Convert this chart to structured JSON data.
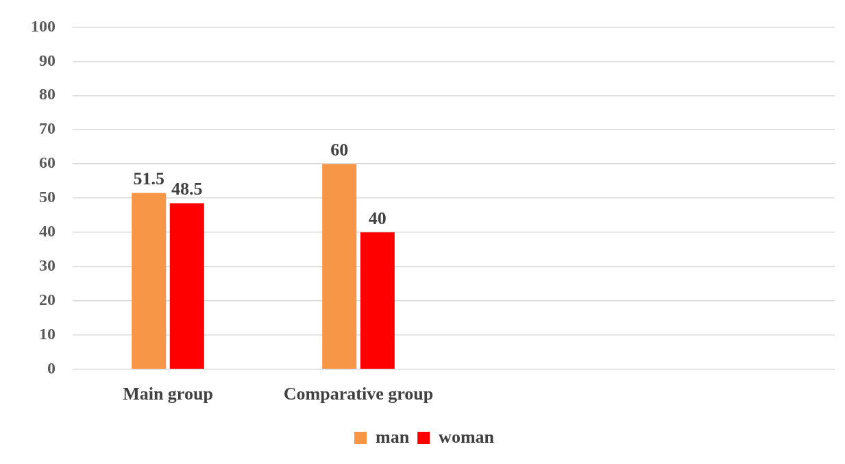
{
  "chart_data": {
    "type": "bar",
    "categories": [
      "Main group",
      "Comparative group",
      null,
      null
    ],
    "series": [
      {
        "name": "man",
        "color": "#f79646",
        "values": [
          51.5,
          60,
          null,
          null
        ]
      },
      {
        "name": "woman",
        "color": "#ff0000",
        "values": [
          48.5,
          40,
          null,
          null
        ]
      }
    ],
    "ylim": [
      0,
      100
    ],
    "yticks": [
      0,
      10,
      20,
      30,
      40,
      50,
      60,
      70,
      80,
      90,
      100
    ],
    "grid": "y",
    "legend": "bottom",
    "data_labels": true
  }
}
